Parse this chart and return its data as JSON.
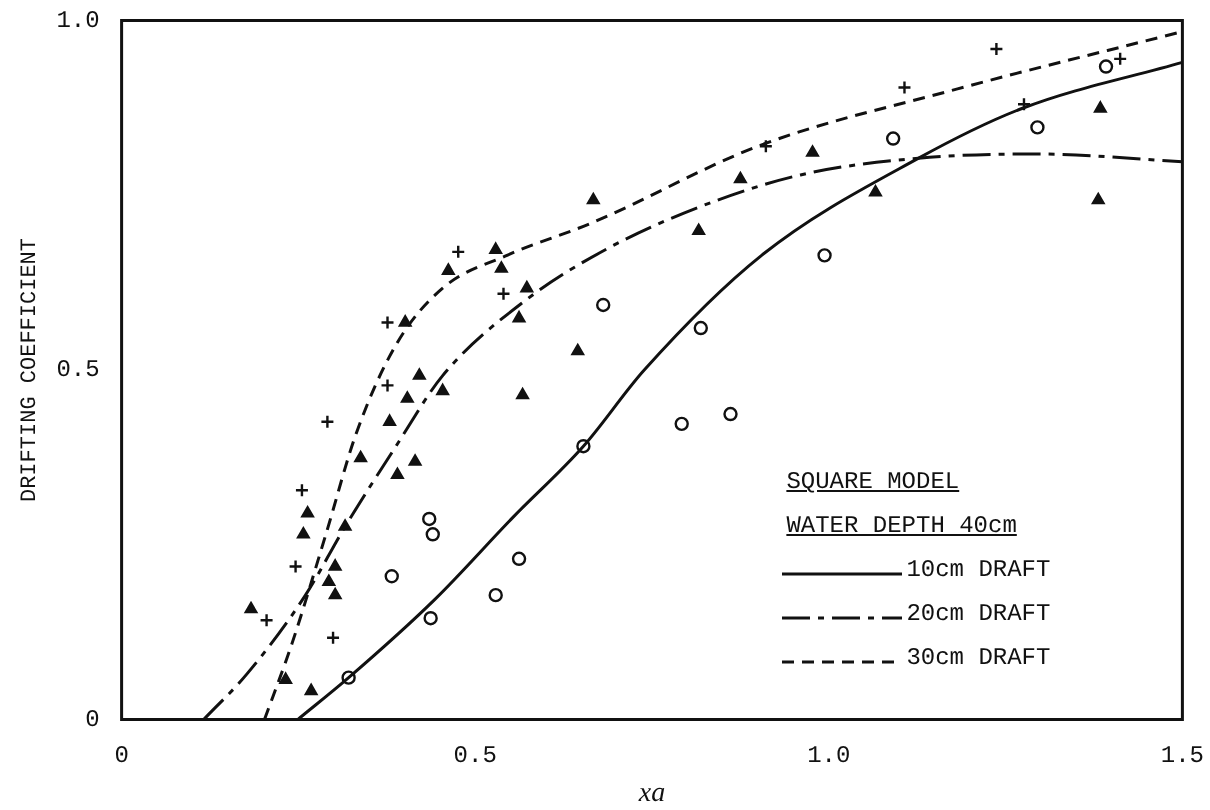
{
  "chart_data": {
    "type": "scatter",
    "xlabel": "xa",
    "ylabel": "DRIFTING COEFFICIENT",
    "legend_title": "SQUARE MODEL",
    "annotations": [
      "WATER DEPTH 40cm"
    ],
    "legend": "bottom right",
    "grid": false,
    "xlim": [
      0,
      1.5
    ],
    "xticks": [
      0,
      0.5,
      {
        "value": 1.0,
        "label": "1.0"
      },
      1.5
    ],
    "ylim": [
      0,
      1.0
    ],
    "yticks": [
      0,
      0.5,
      {
        "value": 1.0,
        "label": "1.0"
      }
    ],
    "series": [
      {
        "type": "line",
        "name": "10cm DRAFT",
        "color": "#111111",
        "line_style": "solid",
        "marker": "none",
        "x": [
          0.249,
          0.321,
          0.443,
          0.554,
          0.653,
          0.739,
          0.905,
          1.127,
          1.273,
          1.5
        ],
        "values": [
          0,
          0.06,
          0.172,
          0.29,
          0.391,
          0.5,
          0.664,
          0.803,
          0.874,
          0.94
        ]
      },
      {
        "type": "line",
        "name": "20cm DRAFT",
        "color": "#111111",
        "line_style": "dashdot",
        "marker": "none",
        "x": [
          0.116,
          0.177,
          0.26,
          0.316,
          0.388,
          0.454,
          0.573,
          0.684,
          0.814,
          0.96,
          1.127,
          1.293,
          1.5
        ],
        "values": [
          0,
          0.065,
          0.178,
          0.276,
          0.391,
          0.492,
          0.601,
          0.672,
          0.732,
          0.779,
          0.803,
          0.809,
          0.798
        ]
      },
      {
        "type": "line",
        "name": "30cm DRAFT",
        "color": "#111111",
        "line_style": "dashed",
        "marker": "none",
        "x": [
          0.202,
          0.241,
          0.288,
          0.332,
          0.388,
          0.454,
          0.545,
          0.664,
          0.905,
          1.182,
          1.5
        ],
        "values": [
          0,
          0.109,
          0.262,
          0.41,
          0.536,
          0.617,
          0.664,
          0.71,
          0.822,
          0.902,
          0.984
        ]
      },
      {
        "color": "#111111",
        "marker": "circle",
        "x": [
          0.321,
          0.382,
          0.435,
          0.44,
          0.437,
          0.529,
          0.562,
          0.653,
          0.681,
          0.792,
          0.819,
          0.861,
          0.994,
          1.091,
          1.295,
          1.392
        ],
        "values": [
          0.06,
          0.205,
          0.287,
          0.265,
          0.145,
          0.178,
          0.23,
          0.391,
          0.593,
          0.423,
          0.56,
          0.437,
          0.664,
          0.831,
          0.847,
          0.934
        ]
      },
      {
        "color": "#111111",
        "marker": "triangle",
        "x": [
          0.183,
          0.232,
          0.268,
          0.257,
          0.263,
          0.293,
          0.302,
          0.302,
          0.316,
          0.338,
          0.379,
          0.39,
          0.401,
          0.404,
          0.415,
          0.421,
          0.454,
          0.462,
          0.529,
          0.537,
          0.562,
          0.573,
          0.567,
          0.645,
          0.667,
          0.816,
          0.875,
          0.977,
          1.066,
          1.384,
          1.381
        ],
        "values": [
          0.158,
          0.057,
          0.041,
          0.265,
          0.295,
          0.197,
          0.219,
          0.178,
          0.276,
          0.374,
          0.426,
          0.35,
          0.568,
          0.459,
          0.369,
          0.492,
          0.47,
          0.642,
          0.672,
          0.645,
          0.574,
          0.617,
          0.464,
          0.527,
          0.743,
          0.699,
          0.773,
          0.811,
          0.754,
          0.874,
          0.743
        ]
      },
      {
        "color": "#111111",
        "marker": "cross",
        "x": [
          0.205,
          0.246,
          0.255,
          0.291,
          0.299,
          0.376,
          0.376,
          0.476,
          0.54,
          0.911,
          1.107,
          1.237,
          1.276,
          1.412
        ],
        "values": [
          0.142,
          0.219,
          0.328,
          0.426,
          0.117,
          0.568,
          0.478,
          0.669,
          0.609,
          0.82,
          0.904,
          0.959,
          0.88,
          0.945
        ]
      }
    ]
  }
}
